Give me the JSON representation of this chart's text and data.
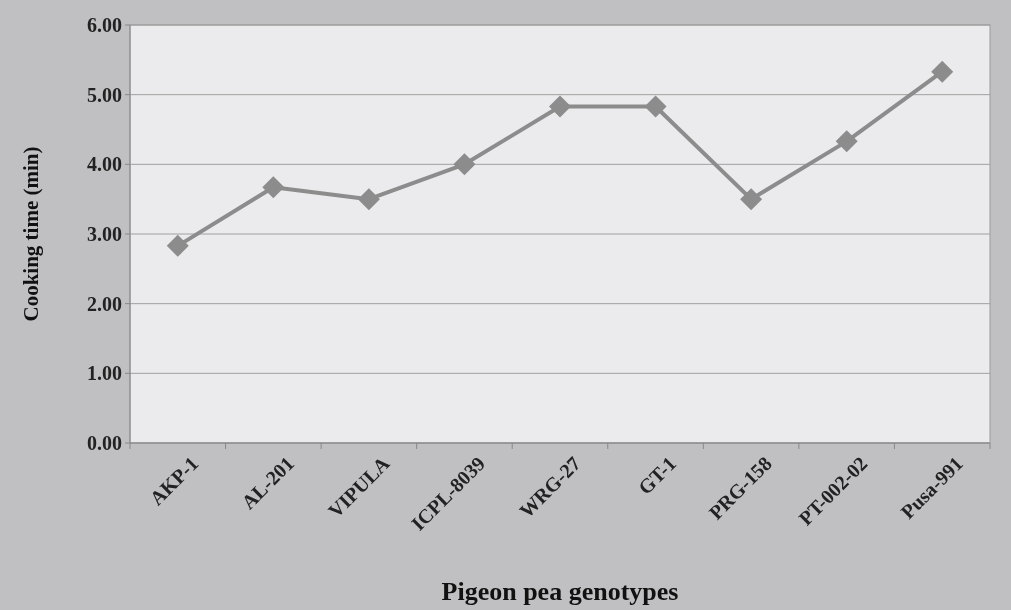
{
  "chart_data": {
    "type": "line",
    "xlabel": "Pigeon pea genotypes",
    "ylabel": "Cooking time (min)",
    "categories": [
      "AKP-1",
      "AL-201",
      "VIPULA",
      "ICPL-8039",
      "WRG-27",
      "GT-1",
      "PRG-158",
      "PT-002-02",
      "Pusa-991"
    ],
    "series": [
      {
        "color": "#8c8c8c",
        "values": [
          2.83,
          3.67,
          3.5,
          4.0,
          4.83,
          4.83,
          3.5,
          4.33,
          5.33
        ]
      }
    ],
    "ylim": [
      0,
      6
    ],
    "yticks": [
      {
        "value": 0,
        "label": "0.00"
      },
      {
        "value": 1,
        "label": "1.00"
      },
      {
        "value": 2,
        "label": "2.00"
      },
      {
        "value": 3,
        "label": "3.00"
      },
      {
        "value": 4,
        "label": "4.00"
      },
      {
        "value": 5,
        "label": "5.00"
      },
      {
        "value": 6,
        "label": "6.00"
      }
    ],
    "grid": "y",
    "marker": "diamond",
    "line_style": "solid"
  }
}
